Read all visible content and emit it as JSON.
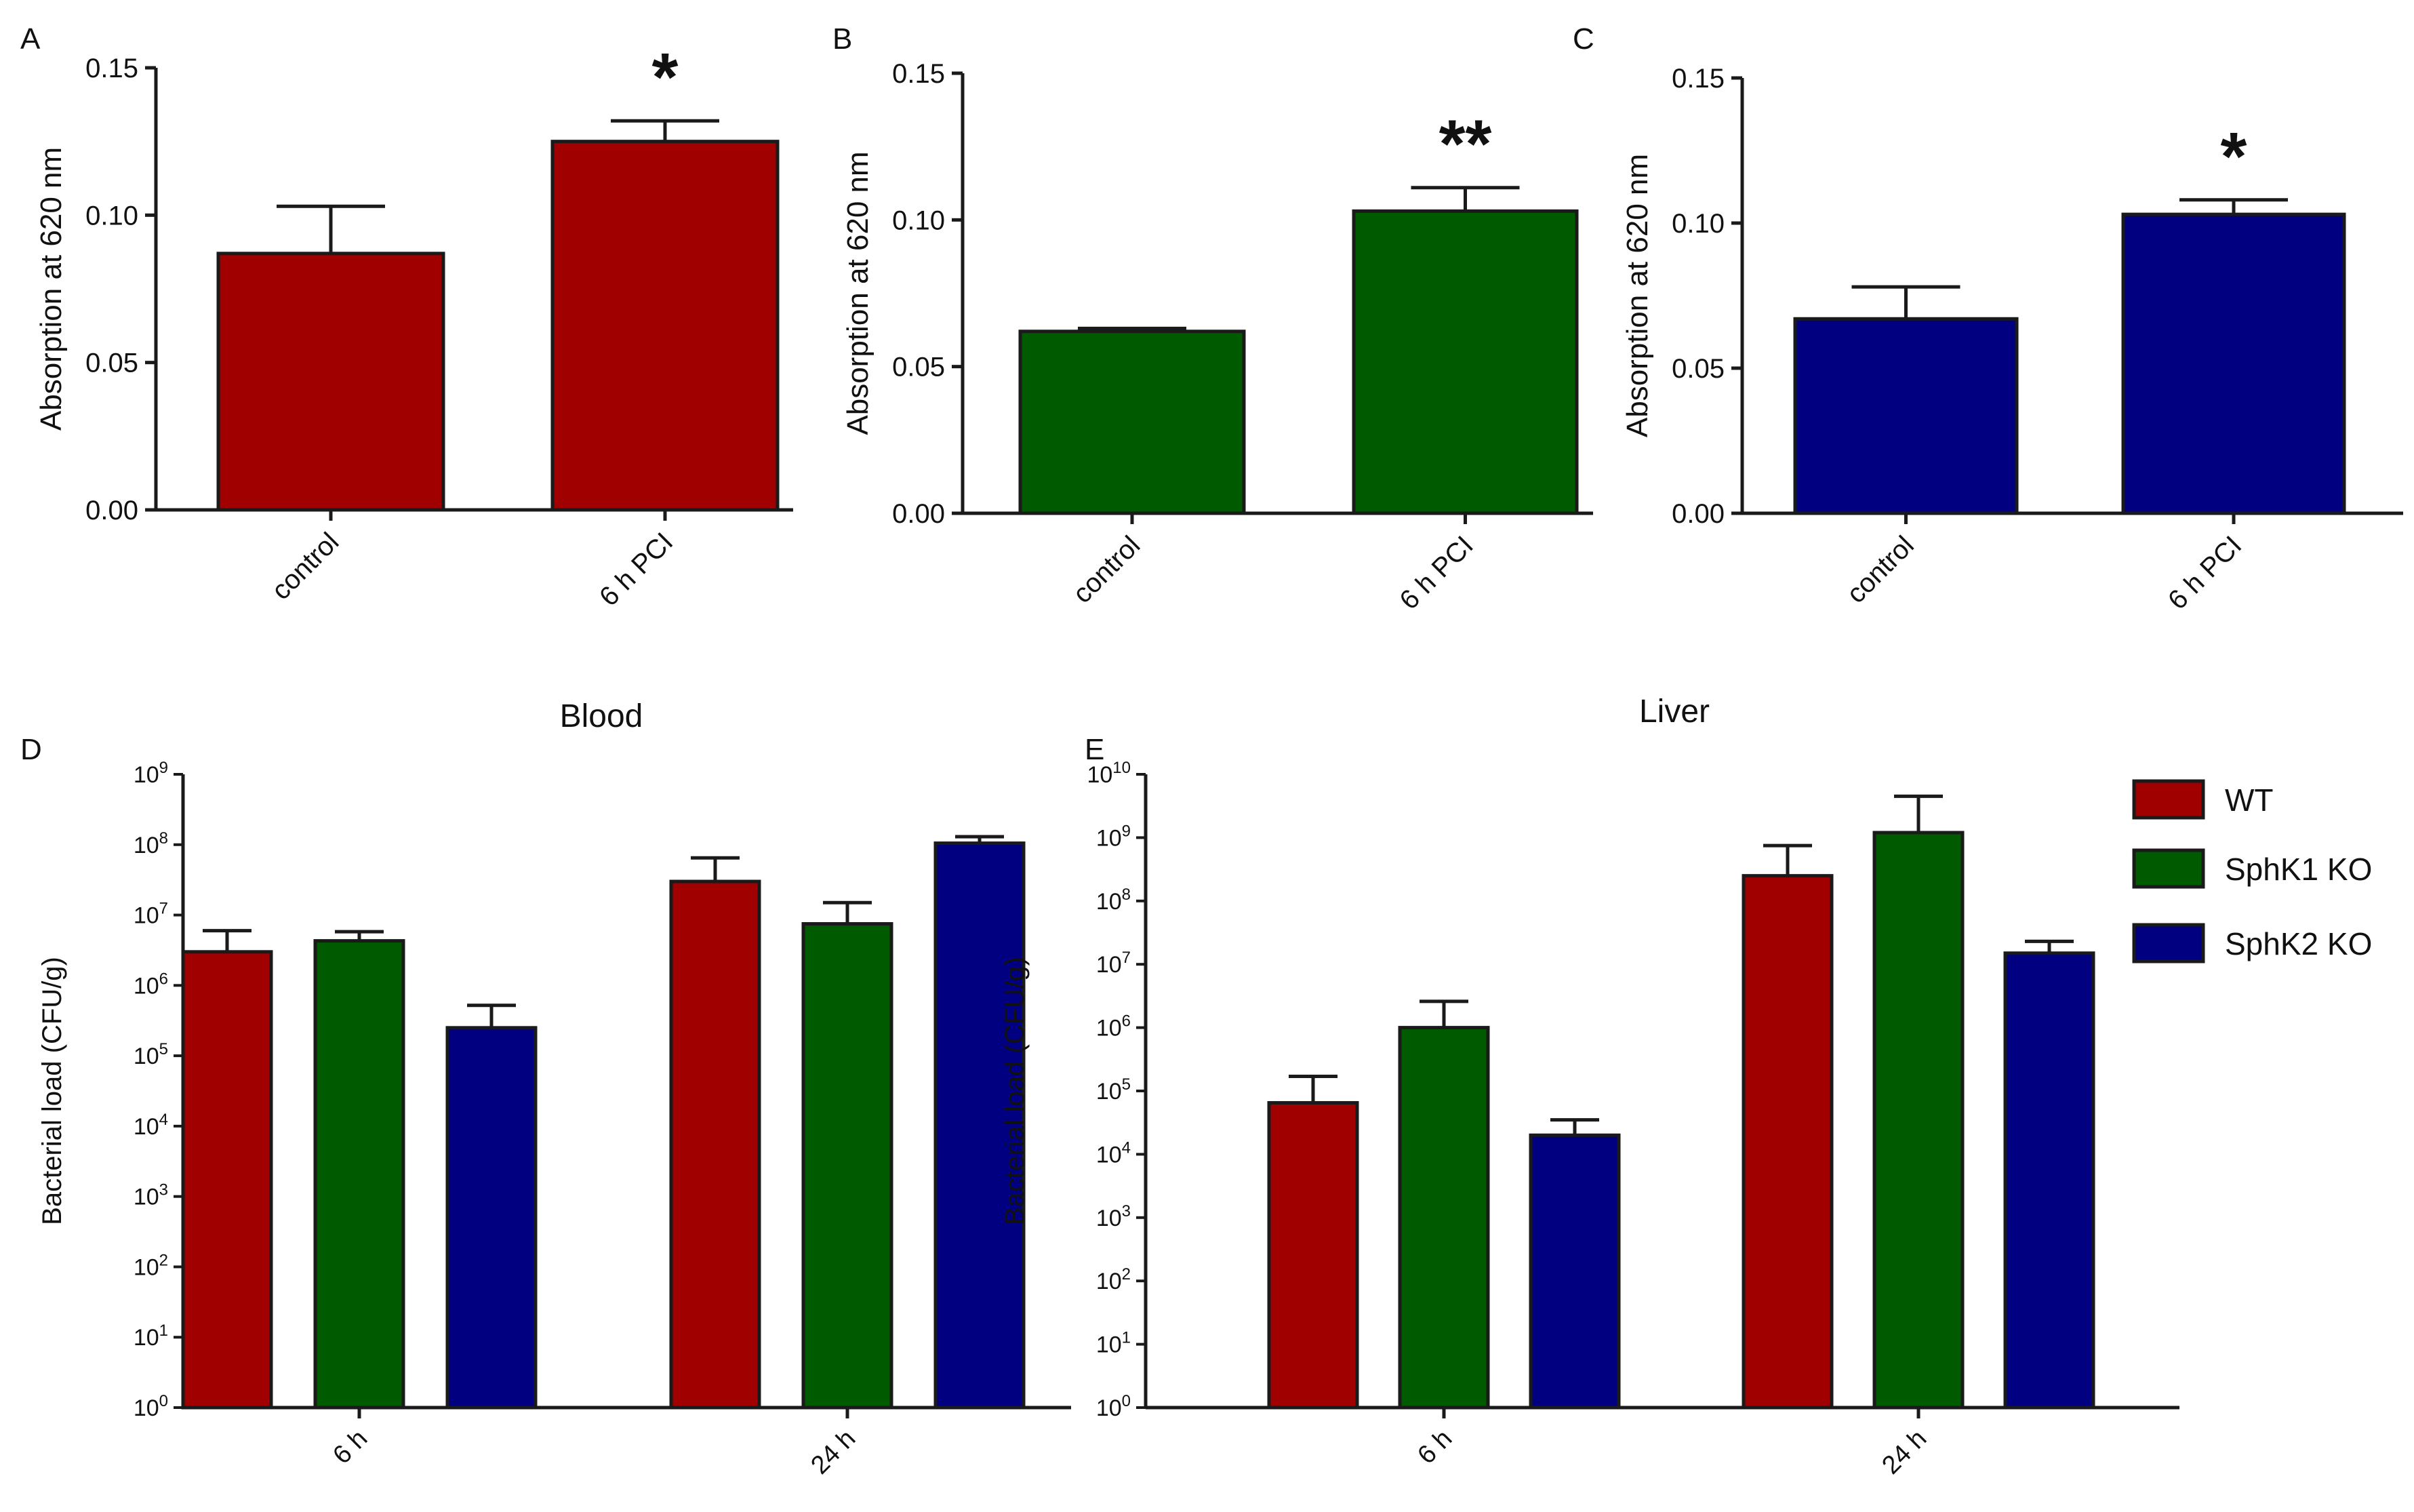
{
  "colors": {
    "wt": "#a10000",
    "sphk1": "#005a00",
    "sphk2": "#000080",
    "axis": "#1a1a1a"
  },
  "legend": [
    {
      "label": "WT",
      "color": "#a10000"
    },
    {
      "label": "SphK1 KO",
      "color": "#005a00"
    },
    {
      "label": "SphK2 KO",
      "color": "#000080"
    }
  ],
  "chart_data": [
    {
      "panel": "A",
      "type": "bar",
      "title": "",
      "ylabel": "Absorption at 620 nm",
      "xlabel": "",
      "ylim": [
        0,
        0.15
      ],
      "yticks": [
        "0.00",
        "0.05",
        "0.10",
        "0.15"
      ],
      "categories": [
        "control",
        "6 h PCI"
      ],
      "values": [
        0.087,
        0.125
      ],
      "errors": [
        0.016,
        0.007
      ],
      "color": "#a10000",
      "annotations": [
        {
          "category": "6 h PCI",
          "text": "*"
        }
      ]
    },
    {
      "panel": "B",
      "type": "bar",
      "title": "",
      "ylabel": "Absorption at 620 nm",
      "xlabel": "",
      "ylim": [
        0,
        0.15
      ],
      "yticks": [
        "0.00",
        "0.05",
        "0.10",
        "0.15"
      ],
      "categories": [
        "control",
        "6 h PCI"
      ],
      "values": [
        0.062,
        0.103
      ],
      "errors": [
        0.001,
        0.008
      ],
      "color": "#005a00",
      "annotations": [
        {
          "category": "6 h PCI",
          "text": "**"
        }
      ]
    },
    {
      "panel": "C",
      "type": "bar",
      "title": "",
      "ylabel": "Absorption at 620 nm",
      "xlabel": "",
      "ylim": [
        0,
        0.15
      ],
      "yticks": [
        "0.00",
        "0.05",
        "0.10",
        "0.15"
      ],
      "categories": [
        "control",
        "6 h PCI"
      ],
      "values": [
        0.067,
        0.103
      ],
      "errors": [
        0.011,
        0.005
      ],
      "color": "#000080",
      "annotations": [
        {
          "category": "6 h PCI",
          "text": "*"
        }
      ]
    },
    {
      "panel": "D",
      "type": "bar",
      "title": "Blood",
      "ylabel": "Bacterial load (CFU/g)",
      "xlabel": "",
      "yscale": "log",
      "ylim_log10": [
        0,
        9
      ],
      "categories": [
        "6 h",
        "24 h"
      ],
      "series": [
        {
          "name": "WT",
          "values": [
            3000000,
            30000000
          ],
          "errors_upper": [
            6000000,
            65000000
          ]
        },
        {
          "name": "SphK1 KO",
          "values": [
            4300000,
            7500000
          ],
          "errors_upper": [
            5800000,
            15000000
          ]
        },
        {
          "name": "SphK2 KO",
          "values": [
            250000,
            105000000
          ],
          "errors_upper": [
            520000,
            130000000
          ]
        }
      ]
    },
    {
      "panel": "E",
      "type": "bar",
      "title": "Liver",
      "ylabel": "Bacterial load (CFU/g)",
      "xlabel": "",
      "yscale": "log",
      "ylim_log10": [
        0,
        10
      ],
      "categories": [
        "6 h",
        "24 h"
      ],
      "series": [
        {
          "name": "WT",
          "values": [
            65000,
            250000000
          ],
          "errors_upper": [
            170000,
            750000000
          ]
        },
        {
          "name": "SphK1 KO",
          "values": [
            1000000,
            1200000000
          ],
          "errors_upper": [
            2600000,
            4500000000
          ]
        },
        {
          "name": "SphK2 KO",
          "values": [
            20000,
            15000000
          ],
          "errors_upper": [
            35000,
            23000000
          ]
        }
      ]
    }
  ]
}
